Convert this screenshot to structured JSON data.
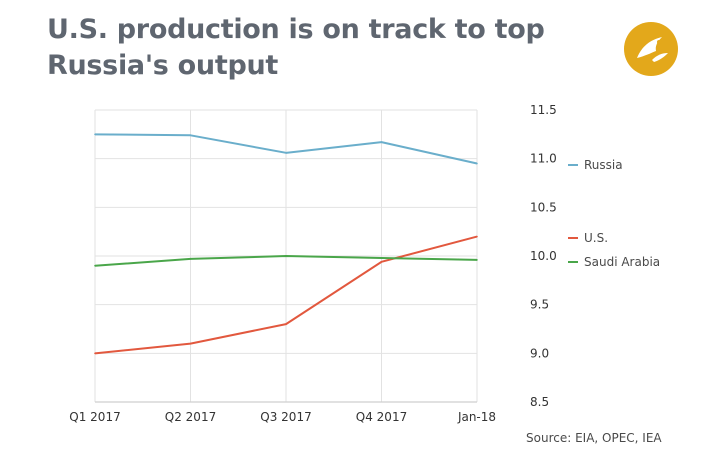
{
  "chart_data": {
    "type": "line",
    "title": "U.S. production is on track to top Russia's output",
    "categories": [
      "Q1 2017",
      "Q2 2017",
      "Q3 2017",
      "Q4 2017",
      "Jan-18"
    ],
    "ylim": [
      8.5,
      11.5
    ],
    "yticks": [
      "8.5",
      "9.0",
      "9.5",
      "10.0",
      "10.5",
      "11.0",
      "11.5"
    ],
    "xlabel": "",
    "ylabel": "",
    "grid": true,
    "legend_placement": "right",
    "series": [
      {
        "name": "Russia",
        "color": "#6aaecb",
        "values": [
          11.25,
          11.24,
          11.06,
          11.17,
          10.95
        ]
      },
      {
        "name": "U.S.",
        "color": "#e2583e",
        "values": [
          9.0,
          9.1,
          9.3,
          9.94,
          10.2
        ]
      },
      {
        "name": "Saudi Arabia",
        "color": "#4aa64a",
        "values": [
          9.9,
          9.97,
          10.0,
          9.98,
          9.96
        ]
      }
    ],
    "source": "Source: EIA, OPEC, IEA"
  },
  "colors": {
    "title": "#5f6670",
    "logo": "#e3a81b",
    "grid": "#e2e2e2",
    "text": "#4a4a4a"
  },
  "logo_icon": "bird-emblem-icon"
}
